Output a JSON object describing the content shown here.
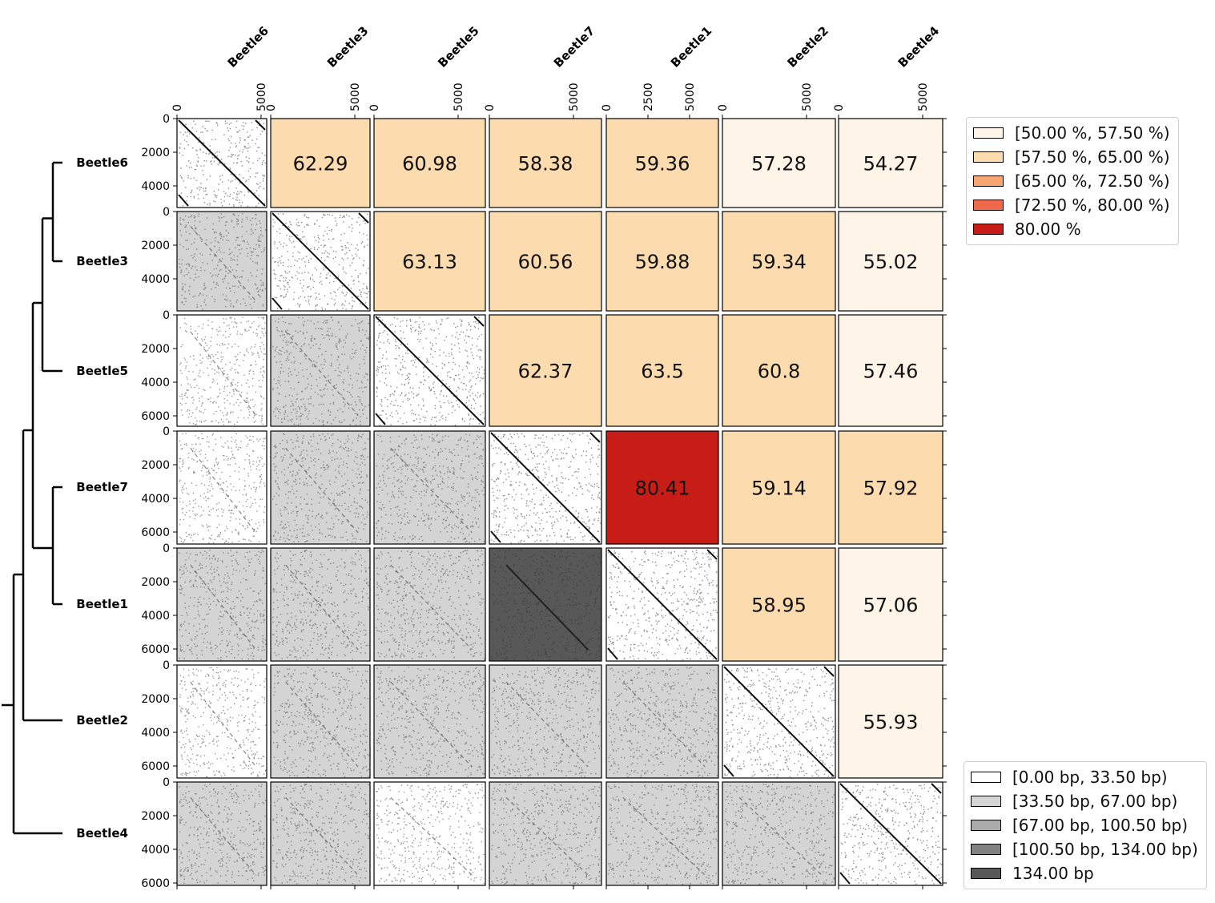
{
  "chart_data": {
    "type": "heatmap",
    "description_free": true,
    "order": [
      "Beetle6",
      "Beetle3",
      "Beetle5",
      "Beetle7",
      "Beetle1",
      "Beetle2",
      "Beetle4"
    ],
    "column_x_ticks": [
      [
        "0",
        "5000"
      ],
      [
        "0",
        "5000"
      ],
      [
        "0",
        "5000"
      ],
      [
        "0",
        "5000"
      ],
      [
        "0",
        "2500",
        "5000"
      ],
      [
        "0",
        "5000"
      ],
      [
        "0",
        "5000"
      ]
    ],
    "row_y_ticks": [
      [
        "0",
        "2000",
        "4000"
      ],
      [
        "0",
        "2000",
        "4000"
      ],
      [
        "0",
        "2000",
        "4000",
        "6000"
      ],
      [
        "0",
        "2000",
        "4000",
        "6000"
      ],
      [
        "0",
        "2000",
        "4000",
        "6000"
      ],
      [
        "0",
        "2000",
        "4000",
        "6000"
      ],
      [
        "0",
        "2000",
        "4000",
        "6000"
      ]
    ],
    "identity_percent": [
      {
        "row": "Beetle6",
        "col": "Beetle3",
        "value": 62.29
      },
      {
        "row": "Beetle6",
        "col": "Beetle5",
        "value": 60.98
      },
      {
        "row": "Beetle6",
        "col": "Beetle7",
        "value": 58.38
      },
      {
        "row": "Beetle6",
        "col": "Beetle1",
        "value": 59.36
      },
      {
        "row": "Beetle6",
        "col": "Beetle2",
        "value": 57.28
      },
      {
        "row": "Beetle6",
        "col": "Beetle4",
        "value": 54.27
      },
      {
        "row": "Beetle3",
        "col": "Beetle5",
        "value": 63.13
      },
      {
        "row": "Beetle3",
        "col": "Beetle7",
        "value": 60.56
      },
      {
        "row": "Beetle3",
        "col": "Beetle1",
        "value": 59.88
      },
      {
        "row": "Beetle3",
        "col": "Beetle2",
        "value": 59.34
      },
      {
        "row": "Beetle3",
        "col": "Beetle4",
        "value": 55.02
      },
      {
        "row": "Beetle5",
        "col": "Beetle7",
        "value": 62.37
      },
      {
        "row": "Beetle5",
        "col": "Beetle1",
        "value": 63.5
      },
      {
        "row": "Beetle5",
        "col": "Beetle2",
        "value": 60.8
      },
      {
        "row": "Beetle5",
        "col": "Beetle4",
        "value": 57.46
      },
      {
        "row": "Beetle7",
        "col": "Beetle1",
        "value": 80.41
      },
      {
        "row": "Beetle7",
        "col": "Beetle2",
        "value": 59.14
      },
      {
        "row": "Beetle7",
        "col": "Beetle4",
        "value": 57.92
      },
      {
        "row": "Beetle1",
        "col": "Beetle2",
        "value": 58.95
      },
      {
        "row": "Beetle1",
        "col": "Beetle4",
        "value": 57.06
      },
      {
        "row": "Beetle2",
        "col": "Beetle4",
        "value": 55.93
      }
    ],
    "identity_bins": [
      {
        "label": "[50.00 %, 57.50 %)",
        "min": 50.0,
        "max": 57.5,
        "color": "#fef5e8"
      },
      {
        "label": "[57.50 %, 65.00 %)",
        "min": 57.5,
        "max": 65.0,
        "color": "#fcdcae"
      },
      {
        "label": "[65.00 %, 72.50 %)",
        "min": 65.0,
        "max": 72.5,
        "color": "#f7a872"
      },
      {
        "label": "[72.50 %, 80.00 %)",
        "min": 72.5,
        "max": 80.0,
        "color": "#ef6a4c"
      },
      {
        "label": "80.00 %",
        "min": 80.0,
        "max": 1000,
        "color": "#c71d16"
      }
    ],
    "lower_bins": [
      {
        "label": "[0.00 bp, 33.50 bp)",
        "color": "#ffffff"
      },
      {
        "label": "[33.50 bp, 67.00 bp)",
        "color": "#d4d4d4"
      },
      {
        "label": "[67.00 bp, 100.50 bp)",
        "color": "#aaaaaa"
      },
      {
        "label": "[100.50 bp, 134.00 bp)",
        "color": "#828282"
      },
      {
        "label": "134.00 bp",
        "color": "#585858"
      }
    ],
    "lower_bin_index": [
      {
        "row": "Beetle3",
        "col": "Beetle6",
        "bin": 1
      },
      {
        "row": "Beetle5",
        "col": "Beetle6",
        "bin": 0
      },
      {
        "row": "Beetle5",
        "col": "Beetle3",
        "bin": 1
      },
      {
        "row": "Beetle7",
        "col": "Beetle6",
        "bin": 0
      },
      {
        "row": "Beetle7",
        "col": "Beetle3",
        "bin": 1
      },
      {
        "row": "Beetle7",
        "col": "Beetle5",
        "bin": 1
      },
      {
        "row": "Beetle1",
        "col": "Beetle6",
        "bin": 1
      },
      {
        "row": "Beetle1",
        "col": "Beetle3",
        "bin": 1
      },
      {
        "row": "Beetle1",
        "col": "Beetle5",
        "bin": 1
      },
      {
        "row": "Beetle1",
        "col": "Beetle7",
        "bin": 4
      },
      {
        "row": "Beetle2",
        "col": "Beetle6",
        "bin": 0
      },
      {
        "row": "Beetle2",
        "col": "Beetle3",
        "bin": 1
      },
      {
        "row": "Beetle2",
        "col": "Beetle5",
        "bin": 1
      },
      {
        "row": "Beetle2",
        "col": "Beetle7",
        "bin": 1
      },
      {
        "row": "Beetle2",
        "col": "Beetle1",
        "bin": 1
      },
      {
        "row": "Beetle4",
        "col": "Beetle6",
        "bin": 1
      },
      {
        "row": "Beetle4",
        "col": "Beetle3",
        "bin": 1
      },
      {
        "row": "Beetle4",
        "col": "Beetle5",
        "bin": 0
      },
      {
        "row": "Beetle4",
        "col": "Beetle7",
        "bin": 1
      },
      {
        "row": "Beetle4",
        "col": "Beetle1",
        "bin": 1
      },
      {
        "row": "Beetle4",
        "col": "Beetle2",
        "bin": 1
      }
    ],
    "dendrogram_merges": [
      [
        "Beetle6",
        "Beetle3"
      ],
      [
        "Beetle7",
        "Beetle1"
      ],
      [
        "(Beetle6,Beetle3)",
        "Beetle5"
      ],
      [
        "((Beetle6,Beetle3),Beetle5)",
        "(Beetle7,Beetle1)"
      ],
      [
        "(...)",
        "Beetle2"
      ],
      [
        "(...)",
        "Beetle4"
      ]
    ]
  }
}
